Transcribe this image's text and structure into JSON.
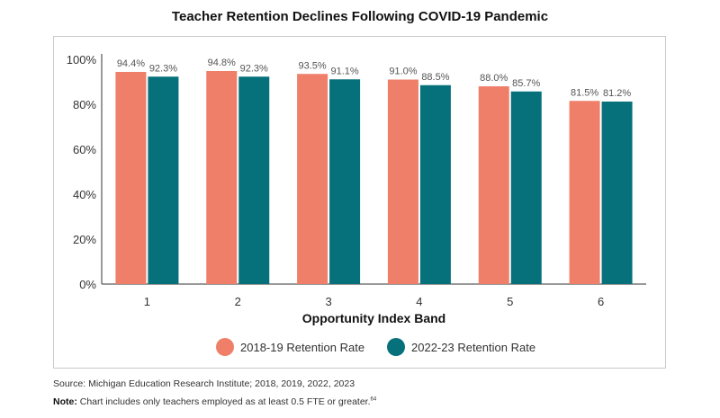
{
  "chart_data": {
    "type": "bar",
    "title": "Teacher Retention Declines Following COVID-19 Pandemic",
    "xlabel": "Opportunity Index Band",
    "ylabel": "",
    "categories": [
      "1",
      "2",
      "3",
      "4",
      "5",
      "6"
    ],
    "ylim": [
      0,
      100
    ],
    "yticks": [
      "0%",
      "20%",
      "40%",
      "60%",
      "80%",
      "100%"
    ],
    "grid": false,
    "legend_position": "bottom",
    "series": [
      {
        "name": "2018-19 Retention Rate",
        "color": "#f07f6a",
        "values": [
          94.4,
          94.8,
          93.5,
          91.0,
          88.0,
          81.5
        ],
        "labels": [
          "94.4%",
          "94.8%",
          "93.5%",
          "91.0%",
          "88.0%",
          "81.5%"
        ]
      },
      {
        "name": "2022-23 Retention Rate",
        "color": "#06717b",
        "values": [
          92.3,
          92.3,
          91.1,
          88.5,
          85.7,
          81.2
        ],
        "labels": [
          "92.3%",
          "92.3%",
          "91.1%",
          "88.5%",
          "85.7%",
          "81.2%"
        ]
      }
    ]
  },
  "footer": {
    "source": "Source: Michigan Education Research Institute; 2018, 2019, 2022, 2023",
    "note_label": "Note:",
    "note_text": " Chart includes only teachers employed as at least 0.5 FTE or greater.",
    "note_ref": "64"
  }
}
